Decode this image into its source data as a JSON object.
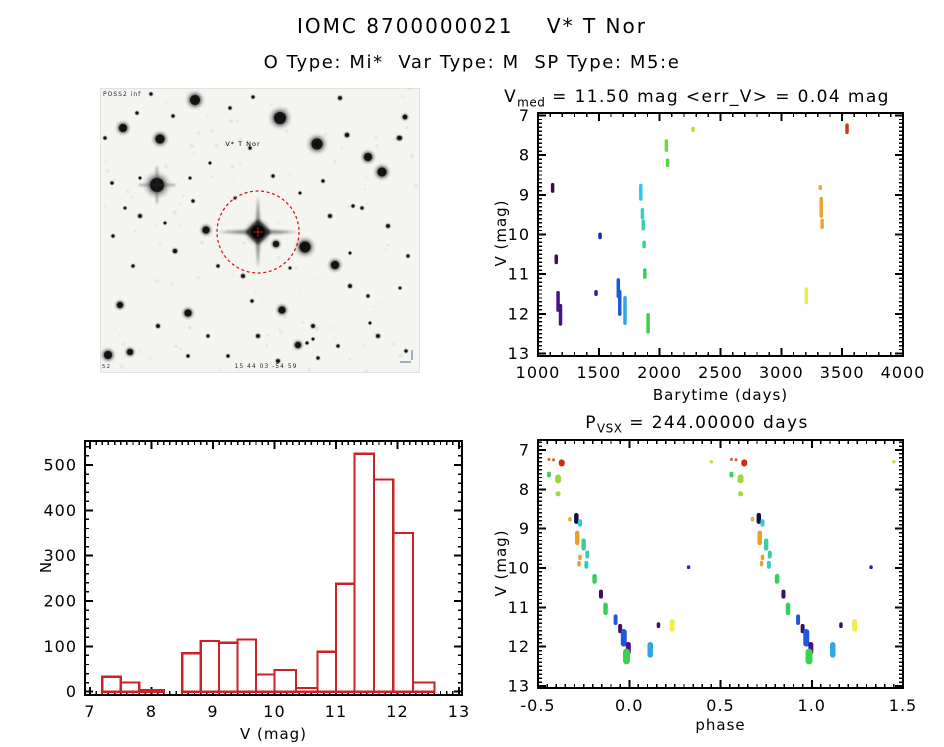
{
  "header": {
    "title": "IOMC 8700000021    V* T Nor",
    "subtitle": "O Type: Mi*  Var Type: M  SP Type: M5:e"
  },
  "finder_chart": {
    "survey_label": "POSS2 inf",
    "target_label": "V* T Nor",
    "coord_label": "15 44 03 -54 59",
    "corner_label": "52",
    "circle_color": "#cc1111",
    "target_center": [
      158,
      144
    ],
    "circle_radius": 41,
    "stars": [
      [
        95,
        12,
        5
      ],
      [
        180,
        30,
        6
      ],
      [
        217,
        56,
        5.5
      ],
      [
        23,
        40,
        4
      ],
      [
        60,
        51,
        4.5
      ],
      [
        57,
        97,
        7
      ],
      [
        268,
        69,
        4
      ],
      [
        282,
        84,
        4.5
      ],
      [
        106,
        142,
        3.5
      ],
      [
        176,
        156,
        3
      ],
      [
        205,
        159,
        5.5
      ],
      [
        235,
        177,
        4
      ],
      [
        20,
        217,
        3
      ],
      [
        88,
        225,
        3.5
      ],
      [
        182,
        222,
        3.5
      ],
      [
        198,
        257,
        3
      ],
      [
        30,
        264,
        3
      ],
      [
        8,
        267,
        4
      ],
      [
        299,
        50,
        2
      ],
      [
        305,
        29,
        2.2
      ],
      [
        153,
        9,
        1.5
      ],
      [
        51,
        6,
        1.5
      ],
      [
        240,
        10,
        1.8
      ],
      [
        130,
        20,
        1.5
      ],
      [
        37,
        25,
        1.5
      ],
      [
        5,
        50,
        1.5
      ],
      [
        150,
        60,
        1.5
      ],
      [
        247,
        47,
        2
      ],
      [
        300,
        50,
        1.8
      ],
      [
        12,
        95,
        1.5
      ],
      [
        40,
        128,
        1.8
      ],
      [
        75,
        163,
        2
      ],
      [
        118,
        178,
        1.5
      ],
      [
        143,
        188,
        1.8
      ],
      [
        230,
        128,
        1.8
      ],
      [
        253,
        118,
        1.5
      ],
      [
        288,
        138,
        1.8
      ],
      [
        308,
        168,
        1.5
      ],
      [
        250,
        198,
        1.8
      ],
      [
        268,
        208,
        1.5
      ],
      [
        58,
        238,
        1.8
      ],
      [
        108,
        248,
        1.5
      ],
      [
        158,
        248,
        1.8
      ],
      [
        213,
        238,
        1.8
      ],
      [
        238,
        258,
        1.5
      ],
      [
        278,
        248,
        1.8
      ],
      [
        128,
        268,
        1.5
      ],
      [
        88,
        268,
        1.5
      ],
      [
        178,
        273,
        1.8
      ],
      [
        218,
        270,
        1.5
      ],
      [
        306,
        263,
        1.5
      ],
      [
        152,
        213,
        1.5
      ],
      [
        33,
        178,
        1.5
      ],
      [
        13,
        148,
        1.5
      ],
      [
        93,
        113,
        1.5
      ],
      [
        73,
        28,
        1.5
      ],
      [
        173,
        88,
        1.5
      ],
      [
        223,
        93,
        1.5
      ],
      [
        262,
        120,
        1.5
      ],
      [
        200,
        105,
        1.3
      ],
      [
        110,
        75,
        1.3
      ],
      [
        90,
        90,
        1.3
      ],
      [
        135,
        110,
        1.3
      ],
      [
        250,
        165,
        1.3
      ],
      [
        300,
        200,
        1.3
      ],
      [
        270,
        235,
        1.3
      ],
      [
        40,
        90,
        1.3
      ],
      [
        25,
        120,
        1.3
      ],
      [
        65,
        135,
        1.3
      ],
      [
        190,
        180,
        1.3
      ],
      [
        207,
        255,
        1.4
      ],
      [
        213,
        251,
        1.3
      ]
    ]
  },
  "chart_data": [
    {
      "id": "lightcurve",
      "type": "scatter",
      "title": {
        "base": "V",
        "sub": "med",
        "rest": " = 11.50 mag <err_V> = 0.04 mag"
      },
      "xlabel": "Barytime (days)",
      "ylabel": "V (mag)",
      "xlim": [
        1000,
        4000
      ],
      "ylim": [
        13,
        7
      ],
      "xticks": [
        1000,
        1500,
        2000,
        2500,
        3000,
        3500,
        4000
      ],
      "yticks": [
        7,
        8,
        9,
        10,
        11,
        12,
        13
      ],
      "x_minor": 100,
      "y_minor": 0.1,
      "points": [
        [
          1120,
          8.7,
          8.95,
          "#3a0a52"
        ],
        [
          1150,
          10.5,
          10.75,
          "#3d0e62"
        ],
        [
          1165,
          11.42,
          11.95,
          "#45128a"
        ],
        [
          1185,
          11.75,
          12.3,
          "#45128a"
        ],
        [
          1477,
          11.4,
          11.55,
          "#3a1a8a"
        ],
        [
          1510,
          9.95,
          10.12,
          "#2121c0"
        ],
        [
          1660,
          11.1,
          11.6,
          "#1d59d8"
        ],
        [
          1672,
          11.4,
          12.05,
          "#1d59d8"
        ],
        [
          1715,
          11.55,
          12.28,
          "#2fa7e4"
        ],
        [
          1845,
          8.72,
          9.15,
          "#2fc6e8"
        ],
        [
          1858,
          9.33,
          9.62,
          "#32d2c4"
        ],
        [
          1865,
          9.62,
          9.9,
          "#34d6a8"
        ],
        [
          1872,
          10.15,
          10.35,
          "#36d285"
        ],
        [
          1878,
          10.85,
          11.12,
          "#35cf58"
        ],
        [
          1905,
          11.98,
          12.5,
          "#3ad24e"
        ],
        [
          2055,
          7.6,
          7.92,
          "#71d83c"
        ],
        [
          2065,
          8.08,
          8.3,
          "#52d344"
        ],
        [
          2274,
          7.28,
          7.42,
          "#b2e332"
        ],
        [
          3205,
          11.33,
          11.76,
          "#efec50"
        ],
        [
          3320,
          8.75,
          8.88,
          "#eeab34"
        ],
        [
          3328,
          9.05,
          9.58,
          "#eda42f"
        ],
        [
          3335,
          9.6,
          9.86,
          "#eda42f"
        ],
        [
          3540,
          7.2,
          7.47,
          "#cd3a18"
        ]
      ]
    },
    {
      "id": "histogram",
      "type": "bar",
      "xlabel": "V (mag)",
      "ylabel": "N",
      "xlim": [
        7,
        13
      ],
      "ylim": [
        0,
        553
      ],
      "xticks": [
        7,
        8,
        9,
        10,
        11,
        12,
        13
      ],
      "yticks": [
        0,
        100,
        200,
        300,
        400,
        500
      ],
      "x_minor": 0.1,
      "y_minor": 20,
      "bar_color": "#cc2126",
      "bars": [
        [
          7.2,
          7.5,
          33
        ],
        [
          7.5,
          7.8,
          20
        ],
        [
          7.8,
          8.2,
          4
        ],
        [
          8.5,
          8.8,
          85
        ],
        [
          8.8,
          9.1,
          112
        ],
        [
          9.1,
          9.4,
          108
        ],
        [
          9.4,
          9.7,
          115
        ],
        [
          9.7,
          10.0,
          38
        ],
        [
          10.0,
          10.35,
          48
        ],
        [
          10.35,
          10.7,
          8
        ],
        [
          10.7,
          11.0,
          88
        ],
        [
          11.0,
          11.3,
          238
        ],
        [
          11.3,
          11.62,
          525
        ],
        [
          11.62,
          11.93,
          468
        ],
        [
          11.93,
          12.25,
          350
        ],
        [
          12.25,
          12.6,
          20
        ]
      ]
    },
    {
      "id": "phase-folded",
      "type": "scatter",
      "title": {
        "base": "P",
        "sub": "VSX",
        "rest": " = 244.00000 days"
      },
      "xlabel": "phase",
      "ylabel": "V (mag)",
      "xlim": [
        -0.5,
        1.5
      ],
      "ylim": [
        13,
        7
      ],
      "xticks": [
        -0.5,
        0.0,
        0.5,
        1.0,
        1.5
      ],
      "yticks": [
        7,
        8,
        9,
        10,
        11,
        12,
        13
      ],
      "x_minor": 0.05,
      "y_minor": 0.1,
      "duplicate_offset": 1.0,
      "points": [
        [
          -0.44,
          7.2,
          7.28,
          "#e06028",
          3
        ],
        [
          -0.415,
          7.21,
          7.29,
          "#e06028",
          3
        ],
        [
          -0.37,
          7.24,
          7.42,
          "#cc2a1a",
          6
        ],
        [
          -0.44,
          7.55,
          7.7,
          "#4fc85f",
          4
        ],
        [
          -0.39,
          7.62,
          7.85,
          "#9ed838",
          6
        ],
        [
          -0.39,
          8.05,
          8.18,
          "#a0d83a",
          5
        ],
        [
          -0.325,
          8.7,
          8.82,
          "#e8b02c",
          3.5
        ],
        [
          -0.29,
          8.6,
          8.88,
          "#10104a",
          4.5
        ],
        [
          -0.27,
          8.76,
          8.95,
          "#35c8dc",
          4
        ],
        [
          -0.285,
          9.05,
          9.42,
          "#e8a028",
          4.5
        ],
        [
          -0.25,
          9.25,
          9.56,
          "#35cfa0",
          4.5
        ],
        [
          -0.27,
          9.66,
          9.8,
          "#e8a028",
          3.5
        ],
        [
          -0.23,
          9.56,
          9.76,
          "#35cfa0",
          4
        ],
        [
          -0.275,
          9.82,
          9.96,
          "#e8a028",
          3.5
        ],
        [
          -0.235,
          9.82,
          10.02,
          "#35ccc4",
          4
        ],
        [
          -0.19,
          10.15,
          10.4,
          "#35cf58",
          4.5
        ],
        [
          -0.155,
          10.55,
          10.78,
          "#3d0e62",
          4
        ],
        [
          -0.13,
          10.88,
          11.2,
          "#35cf58",
          4.5
        ],
        [
          -0.075,
          11.18,
          11.45,
          "#1d59d8",
          4
        ],
        [
          -0.05,
          11.42,
          11.66,
          "#3d0e62",
          4
        ],
        [
          -0.03,
          11.55,
          12.0,
          "#1d59d8",
          6
        ],
        [
          -0.005,
          11.88,
          12.2,
          "#45128a",
          5
        ],
        [
          -0.015,
          12.05,
          12.45,
          "#3ad24e",
          7
        ],
        [
          0.115,
          11.88,
          12.28,
          "#2fa7e4",
          5.5
        ],
        [
          0.16,
          11.38,
          11.53,
          "#3d0e62",
          3.5
        ],
        [
          0.235,
          11.3,
          11.62,
          "#efec50",
          5
        ],
        [
          0.325,
          9.93,
          10.03,
          "#2121c0",
          3.5
        ],
        [
          0.45,
          7.26,
          7.34,
          "#b2e332",
          3.5
        ]
      ]
    }
  ]
}
